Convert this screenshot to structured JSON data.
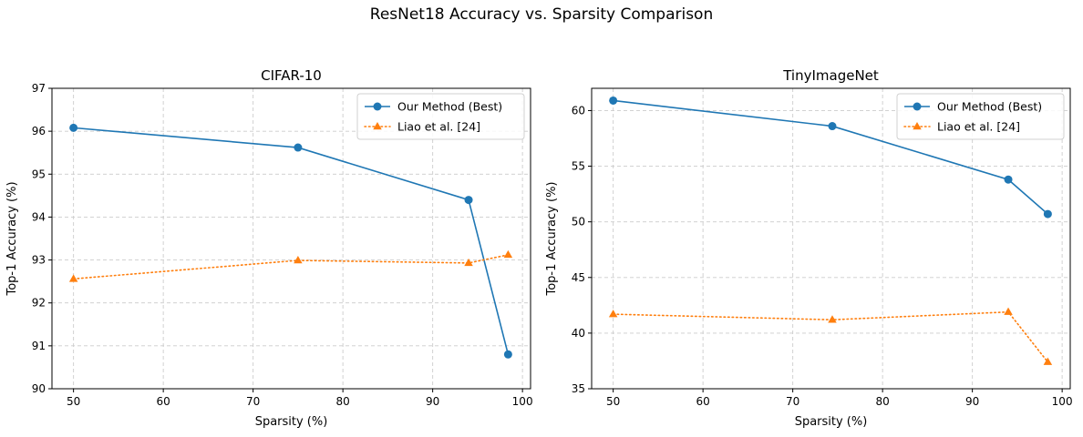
{
  "figure": {
    "title": "ResNet18 Accuracy vs. Sparsity Comparison"
  },
  "colors": {
    "ours": "#1f77b4",
    "liao": "#ff7f0e",
    "grid": "#cccccc",
    "axis": "#000000"
  },
  "chart_data": [
    {
      "type": "line",
      "title": "CIFAR-10",
      "xlabel": "Sparsity (%)",
      "ylabel": "Top-1 Accuracy (%)",
      "xlim": [
        47.6,
        100.9
      ],
      "ylim": [
        90,
        97
      ],
      "xticks": [
        50,
        60,
        70,
        80,
        90,
        100
      ],
      "yticks": [
        90,
        91,
        92,
        93,
        94,
        95,
        96,
        97
      ],
      "grid": true,
      "legend_position": "upper right",
      "series": [
        {
          "name": "Our Method (Best)",
          "style": "solid",
          "marker": "circle",
          "x": [
            50,
            75,
            94,
            98.4
          ],
          "y": [
            96.08,
            95.62,
            94.4,
            90.8
          ]
        },
        {
          "name": "Liao et al. [24]",
          "style": "dotted",
          "marker": "triangle",
          "x": [
            50,
            75,
            94,
            98.4
          ],
          "y": [
            92.56,
            92.99,
            92.93,
            93.12
          ]
        }
      ]
    },
    {
      "type": "line",
      "title": "TinyImageNet",
      "xlabel": "Sparsity (%)",
      "ylabel": "Top-1 Accuracy (%)",
      "xlim": [
        47.6,
        100.9
      ],
      "ylim": [
        35,
        62
      ],
      "xticks": [
        50,
        60,
        70,
        80,
        90,
        100
      ],
      "yticks": [
        35,
        40,
        45,
        50,
        55,
        60
      ],
      "grid": true,
      "legend_position": "upper right",
      "series": [
        {
          "name": "Our Method (Best)",
          "style": "solid",
          "marker": "circle",
          "x": [
            50,
            74.4,
            94,
            98.4
          ],
          "y": [
            60.9,
            58.6,
            53.8,
            50.7
          ]
        },
        {
          "name": "Liao et al. [24]",
          "style": "dotted",
          "marker": "triangle",
          "x": [
            50,
            74.4,
            94,
            98.4
          ],
          "y": [
            41.7,
            41.2,
            41.9,
            37.4
          ]
        }
      ]
    }
  ]
}
